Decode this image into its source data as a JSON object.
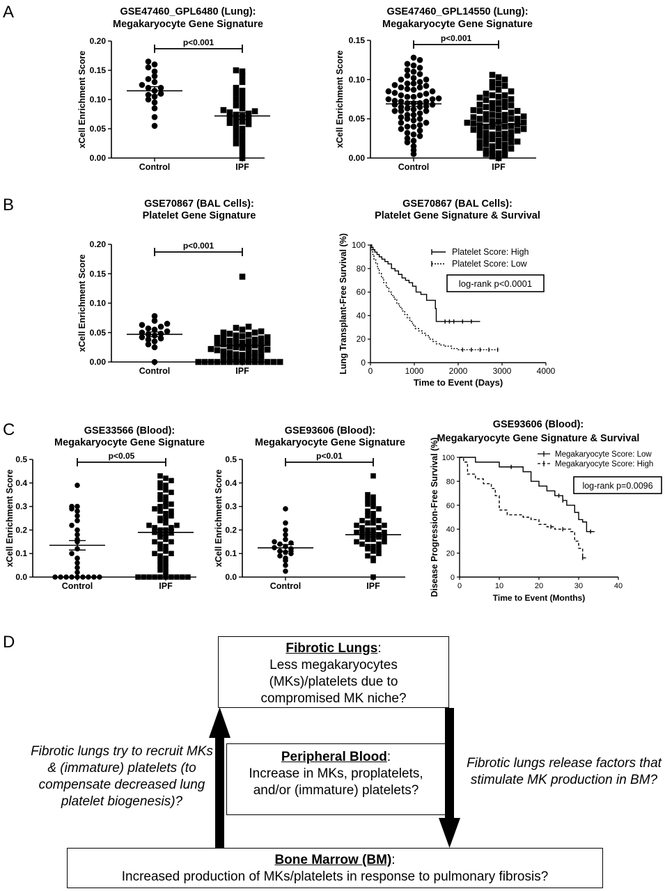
{
  "panel_labels": [
    "A",
    "B",
    "C",
    "D"
  ],
  "chart_data": [
    {
      "id": "a1",
      "type": "scatter",
      "title": [
        "GSE47460_GPL6480 (Lung):",
        "Megakaryocyte Gene Signature"
      ],
      "ylabel": "xCell Enrichment Score",
      "categories": [
        "Control",
        "IPF"
      ],
      "yticks": [
        "0.00",
        "0.05",
        "0.10",
        "0.15",
        "0.20"
      ],
      "ylim": [
        0,
        0.2
      ],
      "significance": "p<0.001",
      "series": [
        {
          "marker": "circle",
          "mean": 0.115,
          "sem": 0.007,
          "values": [
            0.055,
            0.07,
            0.085,
            0.095,
            0.1,
            0.105,
            0.108,
            0.11,
            0.115,
            0.12,
            0.12,
            0.125,
            0.13,
            0.135,
            0.14,
            0.148,
            0.155,
            0.16,
            0.165
          ]
        },
        {
          "marker": "square",
          "mean": 0.072,
          "sem": 0.006,
          "values": [
            0.0,
            0.01,
            0.02,
            0.025,
            0.03,
            0.035,
            0.04,
            0.045,
            0.05,
            0.055,
            0.058,
            0.06,
            0.062,
            0.065,
            0.068,
            0.07,
            0.072,
            0.074,
            0.076,
            0.078,
            0.08,
            0.082,
            0.085,
            0.09,
            0.095,
            0.1,
            0.105,
            0.11,
            0.115,
            0.12,
            0.13,
            0.14,
            0.148,
            0.15
          ]
        }
      ]
    },
    {
      "id": "a2",
      "type": "scatter",
      "title": [
        "GSE47460_GPL14550 (Lung):",
        "Megakaryocyte Gene Signature"
      ],
      "ylabel": "xCell Enrichment Score",
      "categories": [
        "Control",
        "IPF"
      ],
      "yticks": [
        "0.00",
        "0.05",
        "0.10",
        "0.15"
      ],
      "ylim": [
        0,
        0.15
      ],
      "significance": "p<0.001",
      "series": [
        {
          "marker": "circle",
          "mean": 0.069,
          "sem": 0.003,
          "values": [
            0.005,
            0.01,
            0.015,
            0.02,
            0.022,
            0.025,
            0.028,
            0.03,
            0.032,
            0.035,
            0.037,
            0.04,
            0.04,
            0.042,
            0.045,
            0.045,
            0.048,
            0.05,
            0.05,
            0.052,
            0.055,
            0.055,
            0.057,
            0.06,
            0.06,
            0.06,
            0.062,
            0.063,
            0.065,
            0.065,
            0.066,
            0.068,
            0.068,
            0.07,
            0.07,
            0.07,
            0.072,
            0.072,
            0.073,
            0.075,
            0.075,
            0.076,
            0.078,
            0.078,
            0.08,
            0.08,
            0.082,
            0.083,
            0.085,
            0.085,
            0.087,
            0.088,
            0.09,
            0.09,
            0.092,
            0.093,
            0.095,
            0.095,
            0.097,
            0.1,
            0.1,
            0.102,
            0.105,
            0.107,
            0.11,
            0.112,
            0.115,
            0.118,
            0.12,
            0.125,
            0.128
          ]
        },
        {
          "marker": "square",
          "mean": 0.043,
          "sem": 0.002,
          "values": [
            0.0,
            0.002,
            0.004,
            0.005,
            0.006,
            0.008,
            0.01,
            0.01,
            0.012,
            0.013,
            0.015,
            0.015,
            0.017,
            0.018,
            0.02,
            0.02,
            0.021,
            0.022,
            0.024,
            0.025,
            0.025,
            0.026,
            0.028,
            0.03,
            0.03,
            0.031,
            0.032,
            0.033,
            0.035,
            0.035,
            0.036,
            0.037,
            0.038,
            0.04,
            0.04,
            0.04,
            0.041,
            0.042,
            0.043,
            0.044,
            0.045,
            0.045,
            0.046,
            0.047,
            0.048,
            0.049,
            0.05,
            0.05,
            0.05,
            0.052,
            0.053,
            0.054,
            0.055,
            0.055,
            0.056,
            0.058,
            0.06,
            0.06,
            0.061,
            0.062,
            0.063,
            0.065,
            0.065,
            0.067,
            0.068,
            0.07,
            0.07,
            0.072,
            0.074,
            0.075,
            0.077,
            0.078,
            0.08,
            0.08,
            0.082,
            0.085,
            0.087,
            0.09,
            0.092,
            0.095,
            0.097,
            0.1,
            0.103,
            0.106
          ]
        }
      ]
    },
    {
      "id": "b1",
      "type": "scatter",
      "title": [
        "GSE70867 (BAL  Cells):",
        "Platelet Gene Signature"
      ],
      "ylabel": "xCell Enrichment Score",
      "categories": [
        "Control",
        "IPF"
      ],
      "yticks": [
        "0.00",
        "0.05",
        "0.10",
        "0.15",
        "0.20"
      ],
      "ylim": [
        0,
        0.2
      ],
      "significance": "p<0.001",
      "series": [
        {
          "marker": "circle",
          "mean": 0.047,
          "sem": 0.004,
          "values": [
            0.0,
            0.025,
            0.03,
            0.035,
            0.038,
            0.04,
            0.042,
            0.045,
            0.047,
            0.048,
            0.05,
            0.052,
            0.055,
            0.057,
            0.06,
            0.063,
            0.065,
            0.07,
            0.078
          ]
        },
        {
          "marker": "square",
          "mean": 0.028,
          "sem": 0.002,
          "values": [
            0.0,
            0.0,
            0.0,
            0.0,
            0.0,
            0.0,
            0.0,
            0.0,
            0.0,
            0.0,
            0.0,
            0.0,
            0.0,
            0.0,
            0.002,
            0.004,
            0.005,
            0.006,
            0.008,
            0.01,
            0.01,
            0.012,
            0.013,
            0.015,
            0.015,
            0.016,
            0.018,
            0.02,
            0.02,
            0.021,
            0.022,
            0.024,
            0.025,
            0.025,
            0.026,
            0.028,
            0.03,
            0.03,
            0.031,
            0.032,
            0.033,
            0.035,
            0.035,
            0.036,
            0.038,
            0.04,
            0.04,
            0.041,
            0.042,
            0.044,
            0.045,
            0.046,
            0.048,
            0.05,
            0.05,
            0.052,
            0.055,
            0.058,
            0.06,
            0.145
          ]
        }
      ]
    },
    {
      "id": "b2",
      "type": "line",
      "title": [
        "GSE70867 (BAL  Cells):",
        "Platelet Gene Signature & Survival"
      ],
      "ylabel": "Lung Transplant-Free Survival (%)",
      "xlabel": "Time to Event (Days)",
      "xticks": [
        "0",
        "1000",
        "2000",
        "3000",
        "4000"
      ],
      "xlim": [
        0,
        4000
      ],
      "yticks": [
        "0",
        "20",
        "40",
        "60",
        "80",
        "100"
      ],
      "ylim": [
        0,
        100
      ],
      "annotation": "log-rank p<0.0001",
      "series": [
        {
          "name": "Platelet Score: High",
          "dash": "solid",
          "x": [
            0,
            30,
            60,
            100,
            150,
            200,
            260,
            330,
            400,
            480,
            560,
            640,
            720,
            800,
            880,
            960,
            1040,
            1150,
            1280,
            1400,
            1480,
            1500,
            2500
          ],
          "y": [
            100,
            98,
            96,
            94,
            92,
            90,
            88,
            86,
            84,
            80,
            78,
            75,
            72,
            70,
            68,
            65,
            60,
            58,
            53,
            53,
            46,
            35,
            35
          ],
          "censors_x": [
            1700,
            1800,
            1900,
            2100,
            2300
          ]
        },
        {
          "name": "Platelet Score: Low",
          "dash": "dashed",
          "x": [
            0,
            20,
            50,
            80,
            120,
            160,
            200,
            250,
            300,
            360,
            420,
            480,
            540,
            600,
            660,
            720,
            780,
            840,
            900,
            960,
            1020,
            1100,
            1180,
            1260,
            1340,
            1420,
            1500,
            1580,
            1700,
            1850,
            2000,
            2950
          ],
          "y": [
            100,
            96,
            92,
            88,
            84,
            80,
            76,
            72,
            68,
            64,
            60,
            57,
            54,
            50,
            47,
            44,
            41,
            38,
            35,
            32,
            29,
            27,
            25,
            23,
            20,
            18,
            16,
            15,
            14,
            12,
            11,
            11
          ],
          "censors_x": [
            2100,
            2300,
            2500,
            2700,
            2900
          ]
        }
      ]
    },
    {
      "id": "c1",
      "type": "scatter",
      "title": [
        "GSE33566 (Blood):",
        "Megakaryocyte Gene Signature"
      ],
      "ylabel": "xCell Enrichment Score",
      "categories": [
        "Control",
        "IPF"
      ],
      "yticks": [
        "0.0",
        "0.1",
        "0.2",
        "0.3",
        "0.4",
        "0.5"
      ],
      "ylim": [
        0,
        0.5
      ],
      "significance": "p<0.05",
      "series": [
        {
          "marker": "circle",
          "mean": 0.135,
          "sem": 0.02,
          "values": [
            0.0,
            0.0,
            0.0,
            0.0,
            0.0,
            0.0,
            0.0,
            0.0,
            0.0,
            0.02,
            0.04,
            0.06,
            0.08,
            0.1,
            0.12,
            0.15,
            0.16,
            0.18,
            0.2,
            0.22,
            0.24,
            0.26,
            0.28,
            0.29,
            0.3,
            0.3,
            0.39
          ]
        },
        {
          "marker": "square",
          "mean": 0.19,
          "sem": 0.012,
          "values": [
            0.0,
            0.0,
            0.0,
            0.0,
            0.0,
            0.0,
            0.0,
            0.0,
            0.0,
            0.0,
            0.02,
            0.03,
            0.04,
            0.05,
            0.06,
            0.07,
            0.08,
            0.09,
            0.1,
            0.1,
            0.11,
            0.12,
            0.13,
            0.14,
            0.15,
            0.15,
            0.16,
            0.17,
            0.18,
            0.18,
            0.19,
            0.19,
            0.2,
            0.2,
            0.21,
            0.21,
            0.22,
            0.22,
            0.23,
            0.24,
            0.25,
            0.25,
            0.26,
            0.27,
            0.28,
            0.28,
            0.29,
            0.3,
            0.3,
            0.31,
            0.32,
            0.33,
            0.34,
            0.35,
            0.36,
            0.37,
            0.38,
            0.39,
            0.4,
            0.41,
            0.42,
            0.43
          ]
        }
      ]
    },
    {
      "id": "c2",
      "type": "scatter",
      "title": [
        "GSE93606 (Blood):",
        "Megakaryocyte Gene Signature"
      ],
      "ylabel": "xCell Enrichment Score",
      "categories": [
        "Control",
        "IPF"
      ],
      "yticks": [
        "0.0",
        "0.1",
        "0.2",
        "0.3",
        "0.4",
        "0.5"
      ],
      "ylim": [
        0,
        0.5
      ],
      "significance": "p<0.01",
      "series": [
        {
          "marker": "circle",
          "mean": 0.124,
          "sem": 0.014,
          "values": [
            0.025,
            0.05,
            0.07,
            0.08,
            0.09,
            0.1,
            0.105,
            0.11,
            0.12,
            0.125,
            0.13,
            0.14,
            0.145,
            0.15,
            0.16,
            0.18,
            0.2,
            0.23,
            0.29
          ]
        },
        {
          "marker": "square",
          "mean": 0.18,
          "sem": 0.009,
          "values": [
            0.0,
            0.07,
            0.08,
            0.09,
            0.1,
            0.11,
            0.12,
            0.12,
            0.13,
            0.13,
            0.14,
            0.14,
            0.15,
            0.15,
            0.16,
            0.16,
            0.17,
            0.17,
            0.17,
            0.18,
            0.18,
            0.18,
            0.19,
            0.19,
            0.19,
            0.2,
            0.2,
            0.21,
            0.21,
            0.22,
            0.22,
            0.23,
            0.23,
            0.24,
            0.24,
            0.25,
            0.26,
            0.27,
            0.28,
            0.29,
            0.3,
            0.31,
            0.32,
            0.33,
            0.34,
            0.35,
            0.43
          ]
        }
      ]
    },
    {
      "id": "c3",
      "type": "line",
      "title": [
        "GSE93606 (Blood):",
        "Megakaryocyte Gene Signature & Survival"
      ],
      "ylabel": "Disease Progression-Free Survival (%)",
      "xlabel": "Time to Event (Months)",
      "xticks": [
        "0",
        "10",
        "20",
        "30",
        "40"
      ],
      "xlim": [
        0,
        40
      ],
      "yticks": [
        "0",
        "20",
        "40",
        "60",
        "80",
        "100"
      ],
      "ylim": [
        0,
        100
      ],
      "annotation": "log-rank p=0.0096",
      "series": [
        {
          "name": "Megakaryocyte Score: Low",
          "dash": "solid",
          "x": [
            0,
            2,
            4,
            6,
            8,
            10,
            12,
            14,
            16,
            18,
            20,
            22,
            24,
            26,
            27,
            29,
            30,
            31,
            32,
            33,
            34
          ],
          "y": [
            100,
            100,
            96,
            96,
            96,
            92,
            92,
            92,
            88,
            80,
            76,
            72,
            68,
            64,
            60,
            54,
            48,
            46,
            38,
            38,
            38
          ],
          "censors_x": [
            13,
            25,
            26,
            33
          ]
        },
        {
          "name": "Megakaryocyte Score: High",
          "dash": "dashed",
          "x": [
            0,
            1,
            2,
            4,
            6,
            8,
            9,
            10,
            12,
            14,
            16,
            18,
            20,
            22,
            24,
            26,
            28,
            29,
            30,
            31,
            32
          ],
          "y": [
            100,
            96,
            86,
            82,
            78,
            74,
            68,
            56,
            52,
            52,
            50,
            48,
            44,
            42,
            40,
            40,
            38,
            30,
            24,
            16,
            16
          ],
          "censors_x": [
            23,
            26,
            31
          ]
        }
      ]
    }
  ],
  "diagram": {
    "fibrotic_lungs": {
      "heading": "Fibrotic Lungs",
      "text": "Less megakaryocytes (MKs)/platelets due to compromised MK niche?"
    },
    "peripheral_blood": {
      "heading": "Peripheral Blood",
      "text": "Increase in MKs, proplatelets, and/or (immature) platelets?"
    },
    "bone_marrow": {
      "heading": "Bone Marrow (BM)",
      "text": "Increased production of MKs/platelets in response to pulmonary fibrosis?"
    },
    "left_note": "Fibrotic lungs try to recruit MKs & (immature) platelets (to compensate decreased lung platelet biogenesis)?",
    "right_note": "Fibrotic lungs release factors that stimulate MK production in BM?"
  }
}
